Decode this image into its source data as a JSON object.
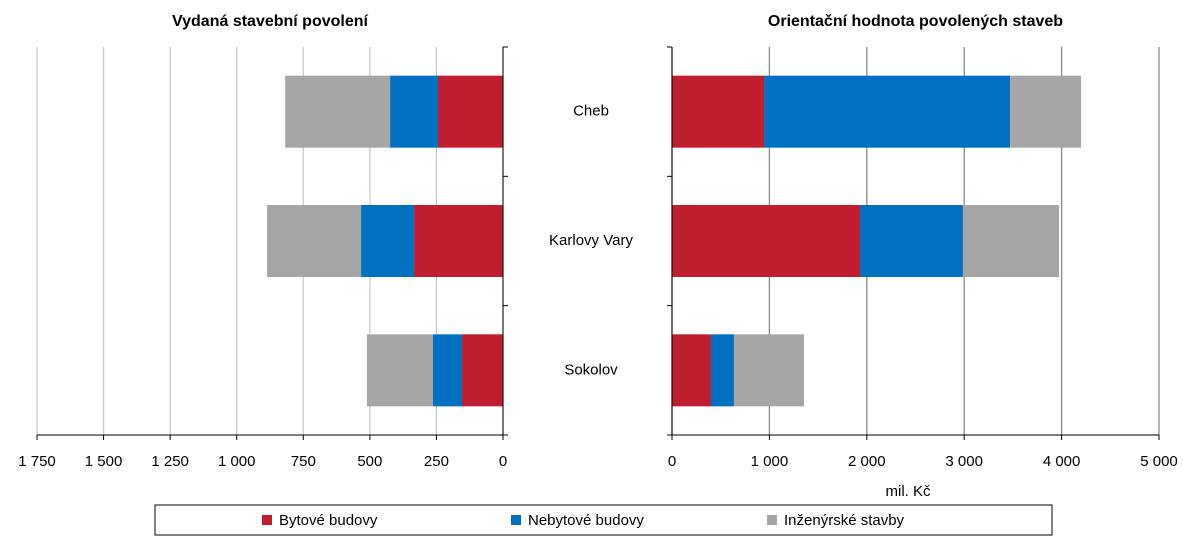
{
  "chart_data": [
    {
      "type": "hbar_stacked",
      "title": "Vydaná stavební povolení",
      "series": [
        {
          "name": "Bytové budovy",
          "color": "#be1e2d",
          "values": [
            244,
            334,
            154
          ]
        },
        {
          "name": "Nebytové budovy",
          "color": "#0070c0",
          "values": [
            180,
            199,
            109
          ]
        },
        {
          "name": "Inženýrské stavby",
          "color": "#a6a6a6",
          "values": [
            394,
            353,
            248
          ]
        }
      ],
      "xlim": [
        1750,
        0
      ],
      "xticks": [
        {
          "value": 1750,
          "label": "1 750"
        },
        {
          "value": 1500,
          "label": "1 500"
        },
        {
          "value": 1250,
          "label": "1 250"
        },
        {
          "value": 1000,
          "label": "1 000"
        },
        750,
        500,
        250,
        0
      ],
      "grid": true,
      "grid_color": "#c8c8c8"
    },
    {
      "type": "hbar_stacked",
      "title": "Orientační hodnota povolených staveb",
      "categories": [
        "Cheb",
        "Karlovy Vary",
        "Sokolov"
      ],
      "x_label": "mil. Kč",
      "series": [
        {
          "color": "#be1e2d",
          "values": [
            945,
            1930,
            400
          ]
        },
        {
          "color": "#0070c0",
          "values": [
            2526,
            1057,
            236
          ]
        },
        {
          "color": "#a6a6a6",
          "values": [
            729,
            986,
            719
          ]
        }
      ],
      "xlim": [
        0,
        5000
      ],
      "xticks": [
        0,
        {
          "value": 1000,
          "label": "1 000"
        },
        {
          "value": 2000,
          "label": "2 000"
        },
        {
          "value": 3000,
          "label": "3 000"
        },
        {
          "value": 4000,
          "label": "4 000"
        },
        {
          "value": 5000,
          "label": "5 000"
        }
      ],
      "grid": true,
      "grid_color": "#888888"
    }
  ]
}
